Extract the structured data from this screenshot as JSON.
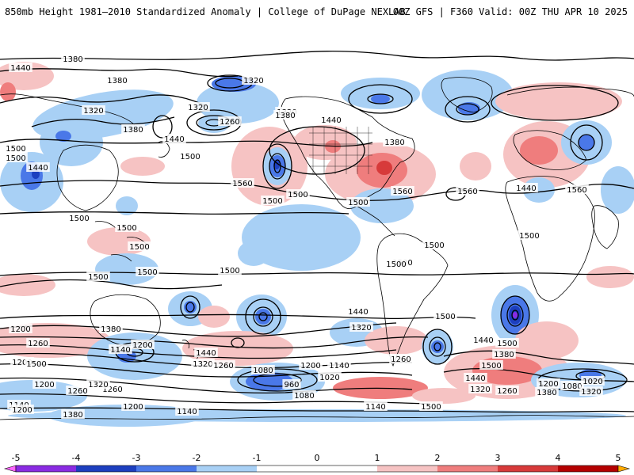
{
  "header": {
    "title_left": "850mb Height 1981–2010 Standardized Anomaly | College of DuPage NEXLAB",
    "title_right": "00Z GFS | F360 Valid: 00Z THU APR 10 2025"
  },
  "colors": {
    "neg5": "#ff66ff",
    "neg4": "#8a2be2",
    "neg3": "#1d3fbf",
    "neg2": "#4a78e8",
    "neg1": "#a8d0f5",
    "neutral": "#ffffff",
    "pos1": "#f6c3c3",
    "pos2": "#ef7d7d",
    "pos3": "#d73a3a",
    "pos4": "#b40000",
    "pos5": "#ffaa00",
    "contour": "#000000",
    "coast": "#000000"
  },
  "colorbar": {
    "ticks": [
      "-5",
      "-4",
      "-3",
      "-2",
      "-1",
      "0",
      "1",
      "2",
      "3",
      "4",
      "5"
    ],
    "values": [
      -5,
      -4,
      -3,
      -2,
      -1,
      0,
      1,
      2,
      3,
      4,
      5
    ]
  },
  "contour_labels": [
    "1380",
    "1320",
    "1440",
    "1380",
    "1320",
    "1380",
    "1320",
    "1260",
    "1440",
    "1320",
    "1380",
    "1440",
    "1500",
    "1500",
    "1440",
    "1500",
    "1560",
    "1500",
    "1500",
    "1500",
    "1560",
    "1560",
    "1500",
    "1500",
    "1500",
    "1500",
    "1500",
    "1500",
    "1500",
    "1500",
    "1500",
    "1560",
    "1440",
    "1320",
    "1260",
    "1380",
    "1140",
    "1200",
    "1440",
    "1320",
    "1260",
    "1080",
    "1200",
    "1140",
    "960",
    "1080",
    "1020",
    "1140",
    "1200",
    "1260",
    "1320",
    "1200",
    "1140",
    "1260",
    "1200",
    "1380",
    "1140",
    "1500",
    "1440",
    "1380",
    "1500",
    "1440",
    "1320",
    "1260",
    "1200",
    "1080",
    "1020",
    "1380",
    "1320",
    "1200",
    "1260",
    "1200",
    "1500",
    "1500",
    "1500",
    "1500",
    "1440",
    "1380"
  ]
}
